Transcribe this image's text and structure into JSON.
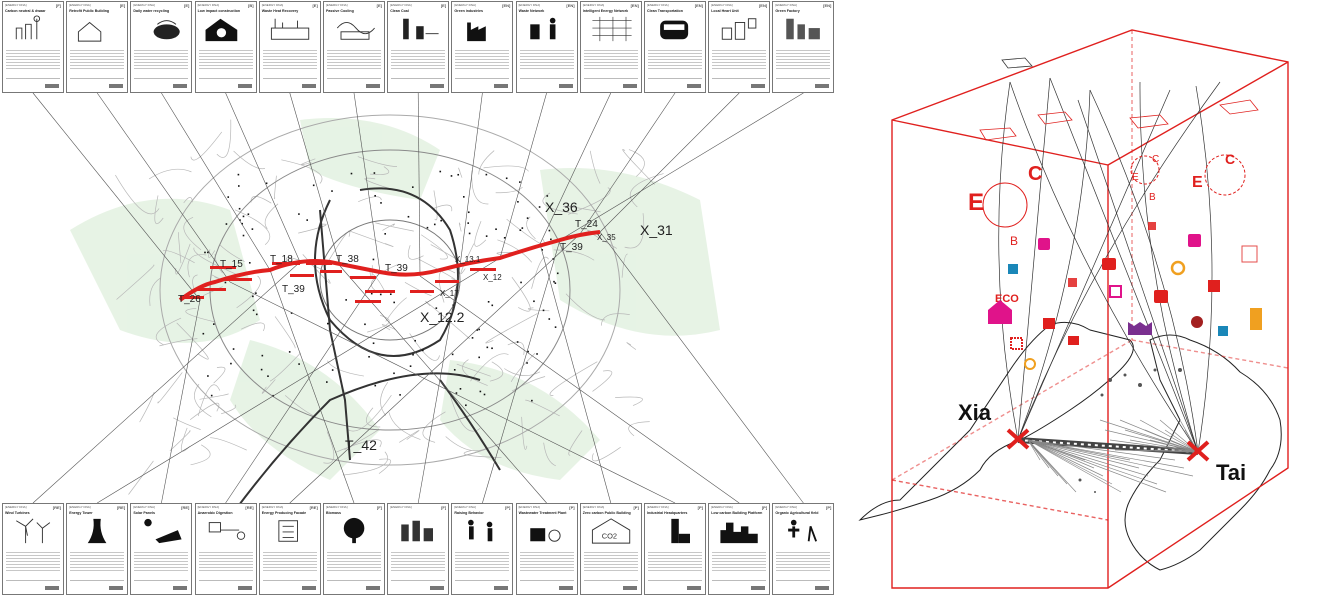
{
  "top_cards": [
    {
      "code": "[F]",
      "title": "Carbon neutral & dwaar",
      "icon": "wind-factory-icon"
    },
    {
      "code": "[E]",
      "title": "Retrofit Public Building",
      "icon": "house-outline-icon"
    },
    {
      "code": "[E]",
      "title": "Daily water recycling",
      "icon": "recycle-bowl-icon"
    },
    {
      "code": "[B]",
      "title": "Low impact construction",
      "icon": "house-recycle-icon"
    },
    {
      "code": "[E]",
      "title": "Waste Heat Recovery",
      "icon": "heat-plant-icon"
    },
    {
      "code": "[E]",
      "title": "Passive Cooling",
      "icon": "cooling-system-icon"
    },
    {
      "code": "[E]",
      "title": "Clean Coal",
      "icon": "coal-plant-icon"
    },
    {
      "code": "[EN]",
      "title": "Green industries",
      "icon": "green-factory-icon"
    },
    {
      "code": "[EN]",
      "title": "Waste Network",
      "icon": "trash-person-icon"
    },
    {
      "code": "[EN]",
      "title": "Intelligent Energy Network",
      "icon": "grid-network-icon"
    },
    {
      "code": "[EN]",
      "title": "Clean Transportation",
      "icon": "car-icon"
    },
    {
      "code": "[EN]",
      "title": "Local Heart Unit",
      "icon": "cubes-icon"
    },
    {
      "code": "[EN]",
      "title": "Green Factory",
      "icon": "factory-bars-icon"
    }
  ],
  "bottom_cards": [
    {
      "code": "[RE]",
      "title": "Wind Turbines",
      "icon": "wind-turbine-icon"
    },
    {
      "code": "[RE]",
      "title": "Energy Tower",
      "icon": "energy-tower-icon"
    },
    {
      "code": "[RE]",
      "title": "Solar Panels",
      "icon": "solar-panel-icon"
    },
    {
      "code": "[RE]",
      "title": "Anaerobic Digestion",
      "icon": "digester-icon"
    },
    {
      "code": "[RE]",
      "title": "Energy Producing Facade",
      "icon": "facade-icon"
    },
    {
      "code": "[F]",
      "title": "Biomass",
      "icon": "tree-icon"
    },
    {
      "code": "[F]",
      "title": "",
      "icon": "buildings-icon"
    },
    {
      "code": "[P]",
      "title": "Raising Behavior",
      "icon": "people-icon"
    },
    {
      "code": "[P]",
      "title": "Wastewater Treatment Plant",
      "icon": "treatment-plant-icon"
    },
    {
      "code": "[P]",
      "title": "Zero carbon Public Building",
      "icon": "co2-house-icon"
    },
    {
      "code": "[P]",
      "title": "Industrial Headquarters",
      "icon": "tall-tower-icon"
    },
    {
      "code": "[P]",
      "title": "Low carbon Building Platform",
      "icon": "skyline-icon"
    },
    {
      "code": "[P]",
      "title": "Organic Agricultural field",
      "icon": "farmer-icon"
    }
  ],
  "map": {
    "x_labels": [
      "X_36",
      "X_31",
      "X_12.2"
    ],
    "t_labels": [
      "T_15",
      "T_18",
      "T_38",
      "T_39",
      "T_39",
      "T_24",
      "T_39",
      "T_26",
      "T_42"
    ],
    "small_labels": [
      "X_35",
      "X_13.1",
      "X_17",
      "X_12"
    ],
    "route_color": "#e0201e"
  },
  "diagram": {
    "letters": [
      "E",
      "C",
      "B",
      "ECO",
      "E",
      "C",
      "B",
      "E",
      "C"
    ],
    "places": [
      "Xia",
      "Tai"
    ],
    "accent": "#e0201e",
    "magenta": "#e0138a",
    "purple": "#7a2f8f",
    "blue": "#1a87b8",
    "orange": "#f0a020"
  }
}
